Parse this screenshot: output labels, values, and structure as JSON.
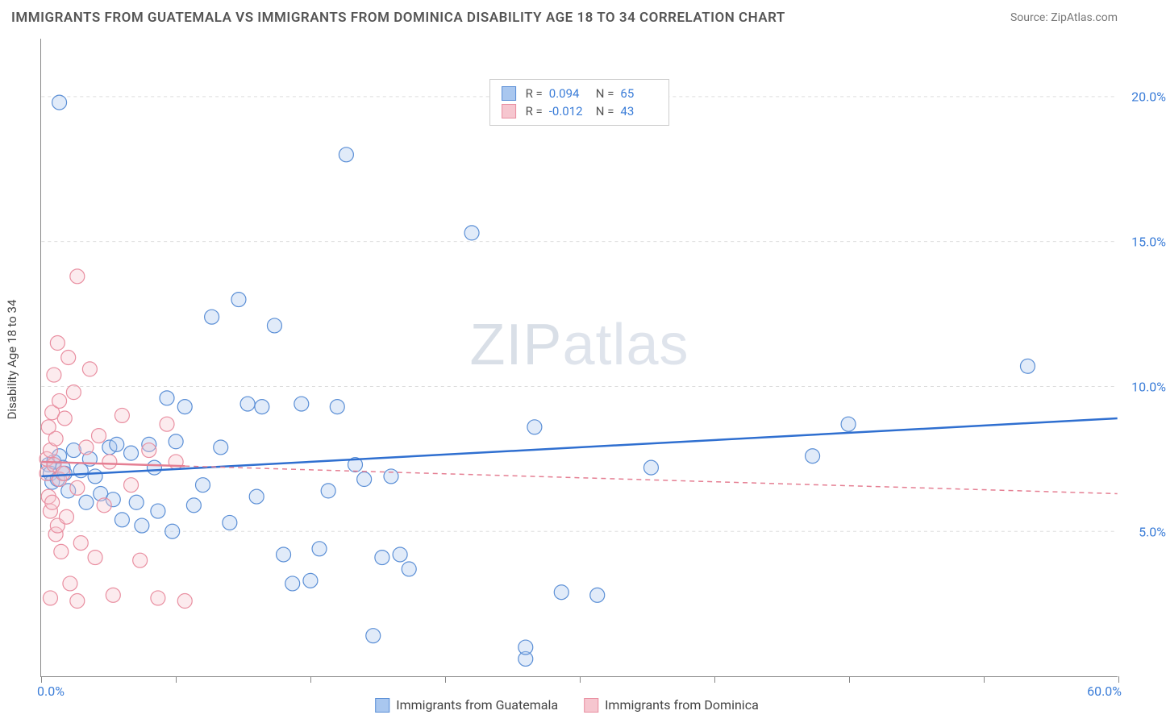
{
  "title": "IMMIGRANTS FROM GUATEMALA VS IMMIGRANTS FROM DOMINICA DISABILITY AGE 18 TO 34 CORRELATION CHART",
  "source": "Source: ZipAtlas.com",
  "watermark": {
    "bold": "ZIP",
    "light": "atlas"
  },
  "ylabel": "Disability Age 18 to 34",
  "chart": {
    "type": "scatter",
    "xlim": [
      0,
      60
    ],
    "ylim": [
      0,
      22
    ],
    "xtick_positions": [
      0,
      7.5,
      15,
      22.5,
      30,
      37.5,
      45,
      52.5,
      60
    ],
    "xmin_label": "0.0%",
    "xmax_label": "60.0%",
    "yticks": [
      {
        "v": 5,
        "label": "5.0%"
      },
      {
        "v": 10,
        "label": "10.0%"
      },
      {
        "v": 15,
        "label": "15.0%"
      },
      {
        "v": 20,
        "label": "20.0%"
      }
    ],
    "grid_color": "#dddddd",
    "background_color": "#ffffff",
    "marker_radius": 9,
    "marker_fill_opacity": 0.35,
    "marker_stroke_width": 1.2,
    "trend_line_width": 2.5,
    "series": [
      {
        "name": "Immigrants from Guatemala",
        "color_fill": "#a9c7ef",
        "color_stroke": "#5b8fd6",
        "trend_color": "#2f6fd0",
        "trend_dash": "none",
        "trend": {
          "x1": 0,
          "y1": 6.9,
          "x2": 60,
          "y2": 8.9
        },
        "R": "0.094",
        "N": "65",
        "points": [
          [
            0.4,
            7.3
          ],
          [
            0.5,
            7.0
          ],
          [
            0.6,
            6.7
          ],
          [
            0.7,
            7.4
          ],
          [
            0.9,
            6.8
          ],
          [
            1.0,
            7.6
          ],
          [
            1.2,
            7.2
          ],
          [
            1.3,
            7.0
          ],
          [
            1.5,
            6.4
          ],
          [
            1.8,
            7.8
          ],
          [
            1.0,
            19.8
          ],
          [
            2.2,
            7.1
          ],
          [
            2.5,
            6.0
          ],
          [
            2.7,
            7.5
          ],
          [
            3.0,
            6.9
          ],
          [
            3.3,
            6.3
          ],
          [
            3.8,
            7.9
          ],
          [
            4.0,
            6.1
          ],
          [
            4.2,
            8.0
          ],
          [
            4.5,
            5.4
          ],
          [
            5.0,
            7.7
          ],
          [
            5.3,
            6.0
          ],
          [
            5.6,
            5.2
          ],
          [
            6.0,
            8.0
          ],
          [
            6.3,
            7.2
          ],
          [
            6.5,
            5.7
          ],
          [
            7.0,
            9.6
          ],
          [
            7.3,
            5.0
          ],
          [
            7.5,
            8.1
          ],
          [
            8.0,
            9.3
          ],
          [
            8.5,
            5.9
          ],
          [
            9.0,
            6.6
          ],
          [
            9.5,
            12.4
          ],
          [
            10.0,
            7.9
          ],
          [
            10.5,
            5.3
          ],
          [
            11.0,
            13.0
          ],
          [
            11.5,
            9.4
          ],
          [
            12.0,
            6.2
          ],
          [
            12.3,
            9.3
          ],
          [
            13.0,
            12.1
          ],
          [
            13.5,
            4.2
          ],
          [
            14.0,
            3.2
          ],
          [
            14.5,
            9.4
          ],
          [
            15.0,
            3.3
          ],
          [
            15.5,
            4.4
          ],
          [
            16.0,
            6.4
          ],
          [
            16.5,
            9.3
          ],
          [
            17.0,
            18.0
          ],
          [
            17.5,
            7.3
          ],
          [
            18.0,
            6.8
          ],
          [
            18.5,
            1.4
          ],
          [
            19.0,
            4.1
          ],
          [
            19.5,
            6.9
          ],
          [
            20.0,
            4.2
          ],
          [
            20.5,
            3.7
          ],
          [
            24.0,
            15.3
          ],
          [
            27.0,
            0.6
          ],
          [
            27.5,
            8.6
          ],
          [
            29.0,
            2.9
          ],
          [
            31.0,
            2.8
          ],
          [
            34.0,
            7.2
          ],
          [
            43.0,
            7.6
          ],
          [
            45.0,
            8.7
          ],
          [
            55.0,
            10.7
          ],
          [
            27.0,
            1.0
          ]
        ]
      },
      {
        "name": "Immigrants from Dominica",
        "color_fill": "#f6c6cf",
        "color_stroke": "#e98fa1",
        "trend_color": "#e57f93",
        "trend_dash": "6,5",
        "trend_solid_until": 8,
        "trend": {
          "x1": 0,
          "y1": 7.4,
          "x2": 60,
          "y2": 6.3
        },
        "R": "-0.012",
        "N": "43",
        "points": [
          [
            0.3,
            7.0
          ],
          [
            0.3,
            7.5
          ],
          [
            0.4,
            8.6
          ],
          [
            0.4,
            6.2
          ],
          [
            0.5,
            7.8
          ],
          [
            0.5,
            5.7
          ],
          [
            0.6,
            9.1
          ],
          [
            0.6,
            6.0
          ],
          [
            0.7,
            10.4
          ],
          [
            0.7,
            7.3
          ],
          [
            0.8,
            4.9
          ],
          [
            0.8,
            8.2
          ],
          [
            0.9,
            11.5
          ],
          [
            0.9,
            5.2
          ],
          [
            1.0,
            9.5
          ],
          [
            1.0,
            6.8
          ],
          [
            1.1,
            4.3
          ],
          [
            1.2,
            7.0
          ],
          [
            1.3,
            8.9
          ],
          [
            1.4,
            5.5
          ],
          [
            1.5,
            11.0
          ],
          [
            1.6,
            3.2
          ],
          [
            1.8,
            9.8
          ],
          [
            2.0,
            13.8
          ],
          [
            2.0,
            6.5
          ],
          [
            2.2,
            4.6
          ],
          [
            2.5,
            7.9
          ],
          [
            2.7,
            10.6
          ],
          [
            3.0,
            4.1
          ],
          [
            3.2,
            8.3
          ],
          [
            3.5,
            5.9
          ],
          [
            3.8,
            7.4
          ],
          [
            4.0,
            2.8
          ],
          [
            4.5,
            9.0
          ],
          [
            5.0,
            6.6
          ],
          [
            5.5,
            4.0
          ],
          [
            6.0,
            7.8
          ],
          [
            6.5,
            2.7
          ],
          [
            7.0,
            8.7
          ],
          [
            7.5,
            7.4
          ],
          [
            8.0,
            2.6
          ],
          [
            2.0,
            2.6
          ],
          [
            0.5,
            2.7
          ]
        ]
      }
    ]
  },
  "legend_bottom": [
    {
      "label": "Immigrants from Guatemala",
      "fill": "#a9c7ef",
      "stroke": "#5b8fd6"
    },
    {
      "label": "Immigrants from Dominica",
      "fill": "#f6c6cf",
      "stroke": "#e98fa1"
    }
  ]
}
